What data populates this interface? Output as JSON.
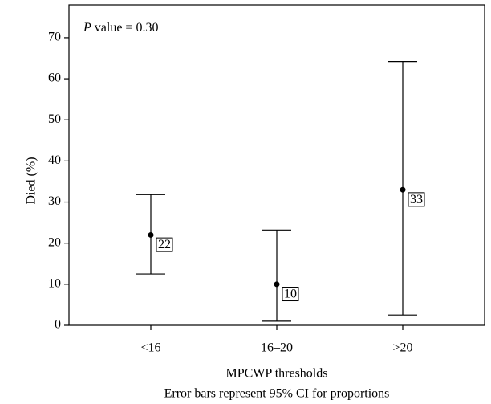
{
  "chart_data": {
    "type": "errorbar",
    "annotation": "P value = 0.30",
    "ylabel": "Died (%)",
    "xlabel": "MPCWP thresholds",
    "caption": "Error bars represent 95% CI for proportions",
    "categories": [
      "<16",
      "16–20",
      ">20"
    ],
    "values": [
      22,
      10,
      33
    ],
    "lower": [
      12.5,
      1,
      2.5
    ],
    "upper": [
      31.8,
      23.2,
      64.2
    ],
    "color": "#000000",
    "ylim": [
      0,
      78
    ],
    "yticks": [
      0,
      10,
      20,
      30,
      40,
      50,
      60,
      70
    ]
  }
}
